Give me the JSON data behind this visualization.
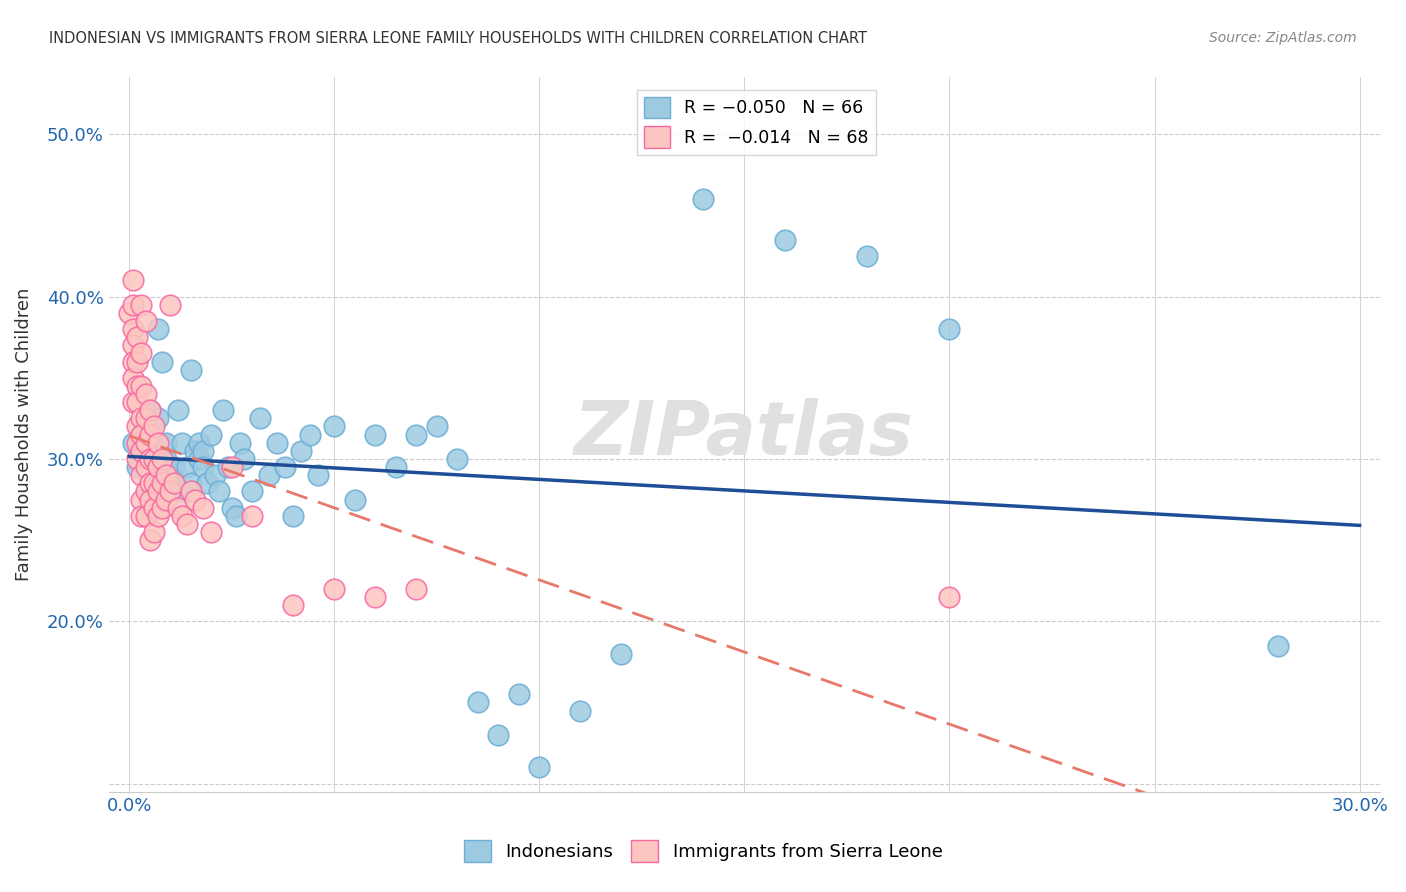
{
  "title": "INDONESIAN VS IMMIGRANTS FROM SIERRA LEONE FAMILY HOUSEHOLDS WITH CHILDREN CORRELATION CHART",
  "source": "Source: ZipAtlas.com",
  "ylabel": "Family Households with Children",
  "watermark": "ZIPatlas",
  "R_indonesian": -0.05,
  "N_indonesian": 66,
  "R_sierra_leone": -0.014,
  "N_sierra_leone": 68,
  "legend1": "R = −0.050   N = 66",
  "legend2": "R =  −0.014   N = 68",
  "x_min": -0.005,
  "x_max": 0.305,
  "y_min": 0.095,
  "y_max": 0.535,
  "x_ticks": [
    0.0,
    0.05,
    0.1,
    0.15,
    0.2,
    0.25,
    0.3
  ],
  "x_tick_labels": [
    "0.0%",
    "",
    "",
    "",
    "",
    "",
    "30.0%"
  ],
  "y_ticks": [
    0.1,
    0.2,
    0.3,
    0.4,
    0.5
  ],
  "y_tick_labels": [
    "",
    "20.0%",
    "30.0%",
    "40.0%",
    "50.0%"
  ],
  "blue_face": "#9ecae1",
  "blue_edge": "#6baed6",
  "pink_face": "#fcc5c0",
  "pink_edge": "#f768a1",
  "trend_blue": "#1f4e96",
  "trend_pink": "#e8796a",
  "grid_color": "#cccccc",
  "tick_color": "#2166ac",
  "title_color": "#333333",
  "source_color": "#888888",
  "watermark_color": "#e0e0e0",
  "indonesian_x": [
    0.001,
    0.002,
    0.003,
    0.003,
    0.004,
    0.004,
    0.005,
    0.005,
    0.006,
    0.007,
    0.007,
    0.008,
    0.008,
    0.009,
    0.009,
    0.01,
    0.01,
    0.011,
    0.012,
    0.013,
    0.013,
    0.014,
    0.015,
    0.015,
    0.016,
    0.017,
    0.017,
    0.018,
    0.018,
    0.019,
    0.02,
    0.021,
    0.022,
    0.023,
    0.024,
    0.025,
    0.026,
    0.027,
    0.028,
    0.03,
    0.032,
    0.034,
    0.036,
    0.038,
    0.04,
    0.042,
    0.044,
    0.046,
    0.05,
    0.055,
    0.06,
    0.065,
    0.07,
    0.075,
    0.08,
    0.085,
    0.09,
    0.095,
    0.1,
    0.11,
    0.12,
    0.14,
    0.16,
    0.18,
    0.2,
    0.28
  ],
  "indonesian_y": [
    0.31,
    0.295,
    0.315,
    0.305,
    0.32,
    0.3,
    0.31,
    0.33,
    0.29,
    0.38,
    0.325,
    0.295,
    0.36,
    0.3,
    0.31,
    0.285,
    0.29,
    0.295,
    0.33,
    0.28,
    0.31,
    0.295,
    0.355,
    0.285,
    0.305,
    0.31,
    0.3,
    0.305,
    0.295,
    0.285,
    0.315,
    0.29,
    0.28,
    0.33,
    0.295,
    0.27,
    0.265,
    0.31,
    0.3,
    0.28,
    0.325,
    0.29,
    0.31,
    0.295,
    0.265,
    0.305,
    0.315,
    0.29,
    0.32,
    0.275,
    0.315,
    0.295,
    0.315,
    0.32,
    0.3,
    0.15,
    0.13,
    0.155,
    0.11,
    0.145,
    0.18,
    0.46,
    0.435,
    0.425,
    0.38,
    0.185
  ],
  "sierra_leone_x": [
    0.0,
    0.001,
    0.001,
    0.001,
    0.001,
    0.001,
    0.001,
    0.001,
    0.002,
    0.002,
    0.002,
    0.002,
    0.002,
    0.002,
    0.002,
    0.003,
    0.003,
    0.003,
    0.003,
    0.003,
    0.003,
    0.003,
    0.003,
    0.003,
    0.004,
    0.004,
    0.004,
    0.004,
    0.004,
    0.004,
    0.004,
    0.005,
    0.005,
    0.005,
    0.005,
    0.005,
    0.005,
    0.006,
    0.006,
    0.006,
    0.006,
    0.006,
    0.007,
    0.007,
    0.007,
    0.007,
    0.008,
    0.008,
    0.008,
    0.009,
    0.009,
    0.01,
    0.01,
    0.011,
    0.012,
    0.013,
    0.014,
    0.015,
    0.016,
    0.018,
    0.02,
    0.025,
    0.03,
    0.04,
    0.05,
    0.06,
    0.07,
    0.2
  ],
  "sierra_leone_y": [
    0.39,
    0.41,
    0.395,
    0.38,
    0.37,
    0.36,
    0.35,
    0.335,
    0.375,
    0.36,
    0.345,
    0.335,
    0.32,
    0.31,
    0.3,
    0.395,
    0.365,
    0.345,
    0.325,
    0.315,
    0.305,
    0.29,
    0.275,
    0.265,
    0.385,
    0.34,
    0.325,
    0.31,
    0.295,
    0.28,
    0.265,
    0.33,
    0.315,
    0.3,
    0.285,
    0.275,
    0.25,
    0.32,
    0.3,
    0.285,
    0.27,
    0.255,
    0.31,
    0.295,
    0.28,
    0.265,
    0.3,
    0.285,
    0.27,
    0.29,
    0.275,
    0.395,
    0.28,
    0.285,
    0.27,
    0.265,
    0.26,
    0.28,
    0.275,
    0.27,
    0.255,
    0.295,
    0.265,
    0.21,
    0.22,
    0.215,
    0.22,
    0.215
  ]
}
